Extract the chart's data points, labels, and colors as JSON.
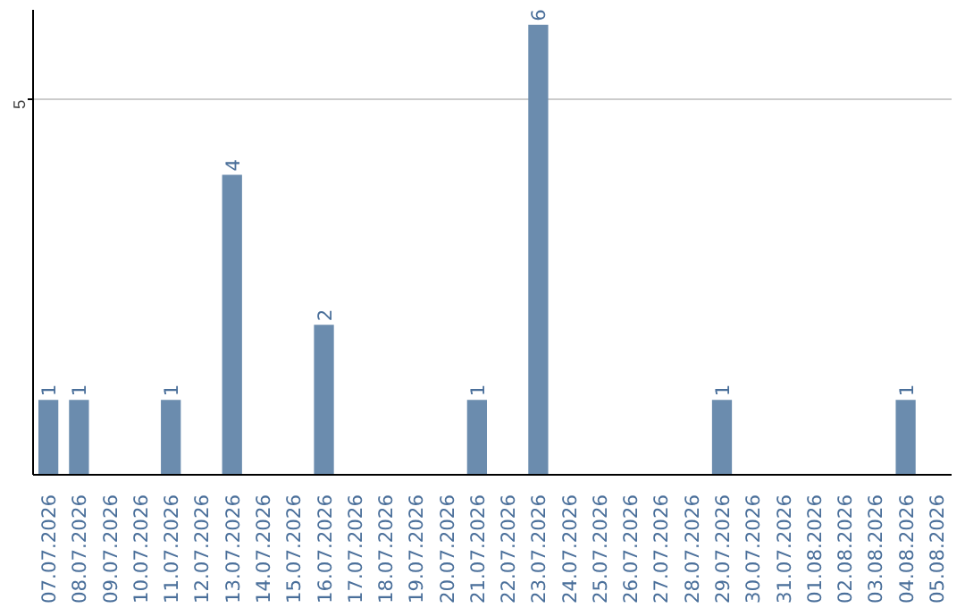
{
  "chart_data": {
    "type": "bar",
    "categories": [
      "07.07.2026",
      "08.07.2026",
      "09.07.2026",
      "10.07.2026",
      "11.07.2026",
      "12.07.2026",
      "13.07.2026",
      "14.07.2026",
      "15.07.2026",
      "16.07.2026",
      "17.07.2026",
      "18.07.2026",
      "19.07.2026",
      "20.07.2026",
      "21.07.2026",
      "22.07.2026",
      "23.07.2026",
      "24.07.2026",
      "25.07.2026",
      "26.07.2026",
      "27.07.2026",
      "28.07.2026",
      "29.07.2026",
      "30.07.2026",
      "31.07.2026",
      "01.08.2026",
      "02.08.2026",
      "03.08.2026",
      "04.08.2026",
      "05.08.2026"
    ],
    "values": [
      1,
      1,
      0,
      0,
      1,
      0,
      4,
      0,
      0,
      2,
      0,
      0,
      0,
      0,
      1,
      0,
      6,
      0,
      0,
      0,
      0,
      0,
      1,
      0,
      0,
      0,
      0,
      0,
      1,
      0
    ],
    "value_labels": [
      "1",
      "1",
      null,
      null,
      "1",
      null,
      "4",
      null,
      null,
      "2",
      null,
      null,
      null,
      null,
      "1",
      null,
      "6",
      null,
      null,
      null,
      null,
      null,
      "1",
      null,
      null,
      null,
      null,
      null,
      "1",
      null
    ],
    "color": "#6b8cae",
    "ylim": [
      0,
      6.2
    ],
    "yticks": [
      5
    ],
    "grid": "y"
  }
}
